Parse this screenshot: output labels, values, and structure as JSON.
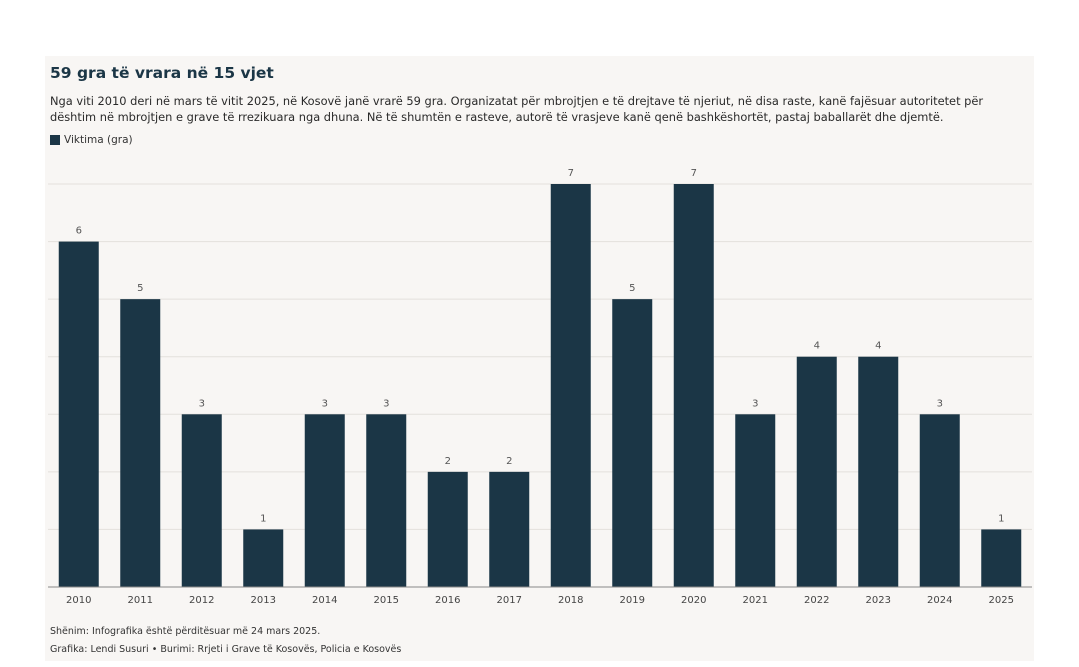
{
  "header": {
    "title": "59 gra të vrara në 15 vjet",
    "subtitle": "Nga viti 2010 deri në mars të vitit 2025, në Kosovë janë vrarë 59 gra. Organizatat për mbrojtjen e të drejtave të njeriut, në disa raste, kanë fajësuar autoritetet për dështim në mbrojtjen e grave të rrezikuara nga dhuna. Në të shumtën e rasteve, autorë të vrasjeve kanë qenë bashkëshortët, pastaj baballarët dhe djemtë."
  },
  "footer": {
    "note": "Shënim: Infografika është përditësuar më 24 mars 2025.",
    "credits": "Grafika: Lendi Susuri  • Burimi: Rrjeti i Grave të Kosovës, Policia e Kosovës"
  },
  "colors": {
    "bar": "#1b3646",
    "grid": "#e3e0dc",
    "background": "#f8f6f4"
  },
  "chart_data": {
    "type": "bar",
    "categories": [
      "2010",
      "2011",
      "2012",
      "2013",
      "2014",
      "2015",
      "2016",
      "2017",
      "2018",
      "2019",
      "2020",
      "2021",
      "2022",
      "2023",
      "2024",
      "2025"
    ],
    "series": [
      {
        "name": "Viktima (gra)",
        "values": [
          6,
          5,
          3,
          1,
          3,
          3,
          2,
          2,
          7,
          5,
          7,
          3,
          4,
          4,
          3,
          1
        ]
      }
    ],
    "ylim": [
      0,
      7
    ],
    "grid": true,
    "legend": "top-left"
  }
}
